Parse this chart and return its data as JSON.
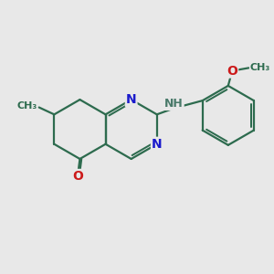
{
  "background_color": "#e8e8e8",
  "bond_color": "#2d6b4e",
  "bond_width": 1.6,
  "N_color": "#1a1acc",
  "O_color": "#cc1a1a",
  "NH_color": "#4a7a6a",
  "label_fontsize": 9.0,
  "small_fontsize": 8.0,
  "figsize": [
    3.0,
    3.0
  ],
  "dpi": 100,
  "xlim": [
    0,
    10
  ],
  "ylim": [
    0,
    10
  ],
  "hex_side": 1.15
}
